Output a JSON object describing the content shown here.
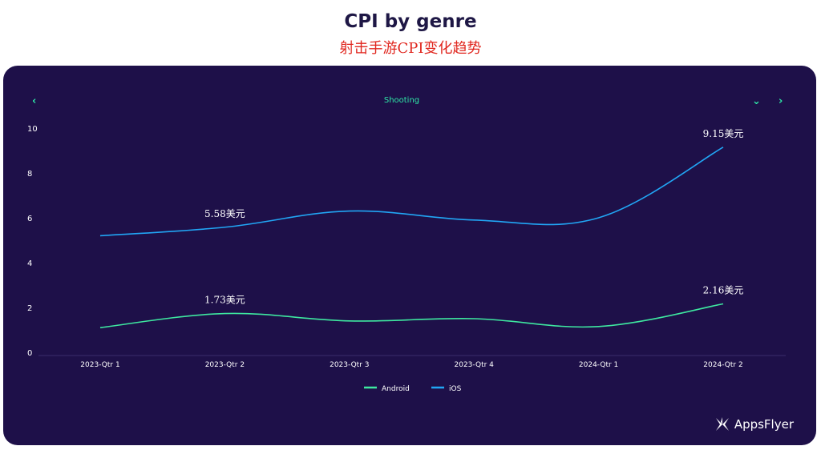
{
  "page": {
    "title": "CPI by genre",
    "subtitle": "射击手游CPI变化趋势"
  },
  "panel": {
    "genre": "Shooting",
    "prev_icon": "chevron-left-icon",
    "dropdown_icon": "chevron-down-icon",
    "next_icon": "chevron-right-icon",
    "logo_text": "AppsFlyer",
    "logo_icon": "appsflyer-logo-icon"
  },
  "colors": {
    "background": "#1e1049",
    "android": "#3ee8a0",
    "ios": "#21a6f5",
    "accent": "#2ee6a6"
  },
  "chart_data": {
    "type": "line",
    "categories": [
      "2023-Qtr 1",
      "2023-Qtr 2",
      "2023-Qtr 3",
      "2023-Qtr 4",
      "2024-Qtr 1",
      "2024-Qtr 2"
    ],
    "yticks": [
      "0",
      "2",
      "4",
      "6",
      "8",
      "10"
    ],
    "ylim": [
      0,
      10
    ],
    "legend_position": "bottom-center",
    "grid": false,
    "series": [
      {
        "name": "Android",
        "values": [
          1.1,
          1.73,
          1.4,
          1.5,
          1.15,
          2.16
        ],
        "labels": [
          "",
          "1.73美元",
          "",
          "",
          "",
          "2.16美元"
        ]
      },
      {
        "name": "iOS",
        "values": [
          5.2,
          5.58,
          6.3,
          5.9,
          6.0,
          9.15
        ],
        "labels": [
          "",
          "5.58美元",
          "",
          "",
          "",
          "9.15美元"
        ]
      }
    ]
  }
}
